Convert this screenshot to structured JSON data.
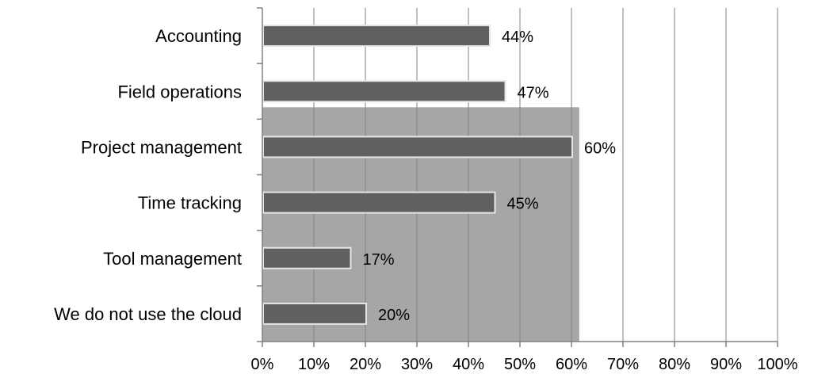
{
  "chart_data": {
    "type": "bar",
    "orientation": "horizontal",
    "categories": [
      "Accounting",
      "Field operations",
      "Project management",
      "Time tracking",
      "Tool management",
      "We do not use the cloud"
    ],
    "values": [
      44,
      47,
      60,
      45,
      17,
      20
    ],
    "data_labels": [
      "44%",
      "47%",
      "60%",
      "45%",
      "17%",
      "20%"
    ],
    "x_ticks": [
      "0%",
      "10%",
      "20%",
      "30%",
      "40%",
      "50%",
      "60%",
      "70%",
      "80%",
      "90%",
      "100%"
    ],
    "xlim": [
      0,
      100
    ],
    "grid": "vertical",
    "legend": "none",
    "colors": {
      "bar": "#606060",
      "bar_edge": "#e6e6e6",
      "background_band": "#a6a6a6",
      "grid": "#808080",
      "axis": "#808080"
    }
  }
}
